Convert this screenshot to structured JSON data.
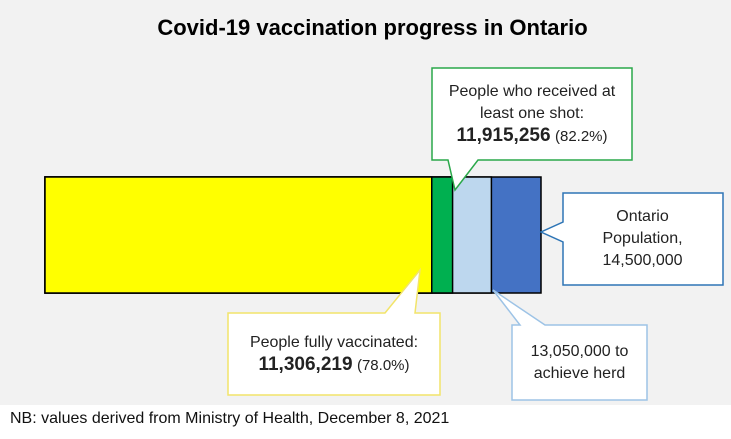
{
  "chart_data": {
    "type": "overlap-bar",
    "title": "Covid-19 vaccination progress in Ontario",
    "xlim": [
      0,
      14500000
    ],
    "series": [
      {
        "name": "Ontario Population,",
        "values": [
          14500000
        ],
        "value_labels": [
          "14,500,000"
        ],
        "color": "#4472c4"
      },
      {
        "name": "to achieve herd",
        "values": [
          13050000
        ],
        "value_labels": [
          "13,050,000"
        ],
        "color": "#bdd7ee"
      },
      {
        "name": "People who received at least one shot:",
        "values": [
          11915256
        ],
        "value_labels": [
          "11,915,256"
        ],
        "percent_labels": [
          "(82.2%)"
        ],
        "color": "#00b050"
      },
      {
        "name": "People fully vaccinated:",
        "values": [
          11306219
        ],
        "value_labels": [
          "11,306,219"
        ],
        "percent_labels": [
          "(78.0%)"
        ],
        "color": "#ffff00"
      }
    ],
    "note": "NB: values derived from Ministry of Health, December 8, 2021"
  }
}
